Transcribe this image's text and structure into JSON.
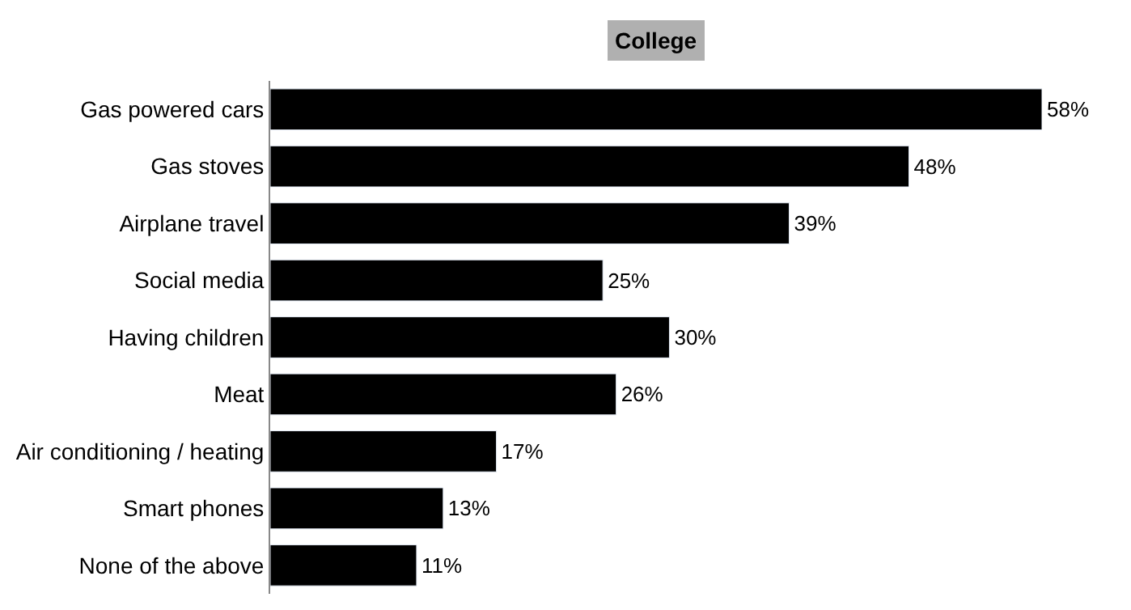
{
  "chart_data": {
    "type": "bar",
    "orientation": "horizontal",
    "title": "College",
    "categories": [
      "Gas powered cars",
      "Gas stoves",
      "Airplane travel",
      "Social media",
      "Having children",
      "Meat",
      "Air conditioning / heating",
      "Smart phones",
      "None of the above"
    ],
    "values": [
      58,
      48,
      39,
      25,
      30,
      26,
      17,
      13,
      11
    ],
    "value_labels": [
      "58%",
      "48%",
      "39%",
      "25%",
      "30%",
      "26%",
      "17%",
      "13%",
      "11%"
    ],
    "color": "#000000"
  }
}
